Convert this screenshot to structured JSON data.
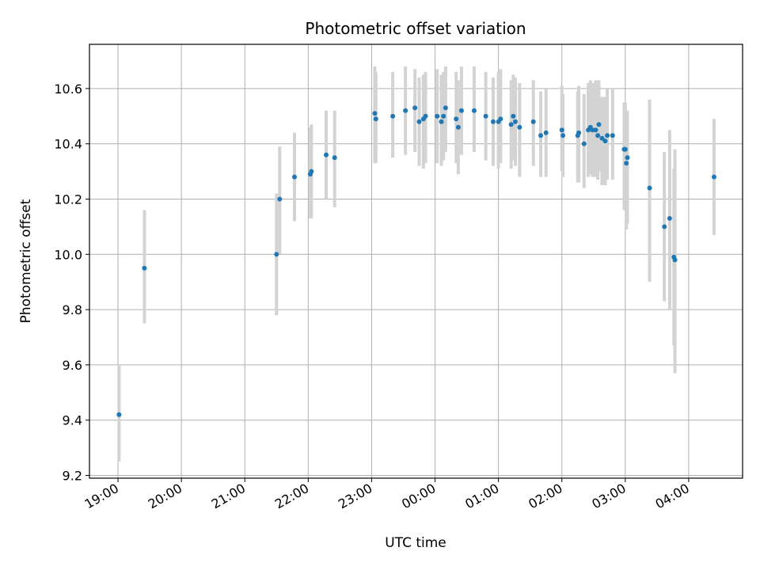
{
  "chart_data": {
    "type": "scatter",
    "title": "Photometric offset variation",
    "xlabel": "UTC time",
    "ylabel": "Photometric offset",
    "grid": true,
    "legend": "none",
    "x_tick_labels": [
      "19:00",
      "20:00",
      "21:00",
      "22:00",
      "23:00",
      "00:00",
      "01:00",
      "02:00",
      "03:00",
      "04:00"
    ],
    "y_tick_labels": [
      "9.2",
      "9.4",
      "9.6",
      "9.8",
      "10.0",
      "10.2",
      "10.4",
      "10.6"
    ],
    "ylim": [
      9.19,
      10.76
    ],
    "xlim_hours": [
      18.55,
      28.85
    ],
    "colors": {
      "point": "#1f77b4",
      "errorbar": "#d3d3d3",
      "grid": "#b0b0b0"
    },
    "series": [
      {
        "x": [
          "19:01",
          "19:25",
          "21:30",
          "21:33",
          "21:47",
          "22:02",
          "22:03",
          "22:17",
          "22:25",
          "23:03",
          "23:04",
          "23:20",
          "23:32",
          "23:41",
          "23:45",
          "23:49",
          "23:51",
          "00:02",
          "00:06",
          "00:08",
          "00:10",
          "00:20",
          "00:22",
          "00:25",
          "00:37",
          "00:48",
          "00:55",
          "01:00",
          "01:02",
          "01:12",
          "01:14",
          "01:16",
          "01:20",
          "01:33",
          "01:40",
          "01:45",
          "02:00",
          "02:01",
          "02:15",
          "02:16",
          "02:21",
          "02:25",
          "02:27",
          "02:29",
          "02:32",
          "02:34",
          "02:35",
          "02:38",
          "02:41",
          "02:43",
          "02:48",
          "02:59",
          "03:00",
          "03:01",
          "03:02",
          "03:23",
          "03:37",
          "03:42",
          "03:46",
          "03:47",
          "04:24"
        ],
        "y": [
          9.42,
          9.95,
          10.0,
          10.2,
          10.28,
          10.29,
          10.3,
          10.36,
          10.35,
          10.51,
          10.49,
          10.5,
          10.52,
          10.53,
          10.48,
          10.49,
          10.5,
          10.5,
          10.48,
          10.5,
          10.53,
          10.49,
          10.46,
          10.52,
          10.52,
          10.5,
          10.48,
          10.48,
          10.49,
          10.47,
          10.5,
          10.48,
          10.46,
          10.48,
          10.43,
          10.44,
          10.45,
          10.43,
          10.43,
          10.44,
          10.4,
          10.45,
          10.46,
          10.45,
          10.45,
          10.43,
          10.47,
          10.42,
          10.41,
          10.43,
          10.43,
          10.38,
          10.38,
          10.33,
          10.35,
          10.24,
          10.1,
          10.13,
          9.99,
          9.98,
          10.28
        ],
        "err_low": [
          9.25,
          9.75,
          9.78,
          10.0,
          10.12,
          10.13,
          10.13,
          10.2,
          10.17,
          10.33,
          10.33,
          10.35,
          10.36,
          10.37,
          10.32,
          10.31,
          10.33,
          10.33,
          10.32,
          10.34,
          10.37,
          10.33,
          10.29,
          10.36,
          10.37,
          10.34,
          10.32,
          10.31,
          10.33,
          10.31,
          10.34,
          10.32,
          10.28,
          10.32,
          10.28,
          10.28,
          10.3,
          10.28,
          10.26,
          10.26,
          10.24,
          10.28,
          10.29,
          10.28,
          10.28,
          10.27,
          10.3,
          10.25,
          10.25,
          10.27,
          10.27,
          10.16,
          10.2,
          10.09,
          10.11,
          9.9,
          9.83,
          9.8,
          9.67,
          9.57,
          10.07
        ],
        "err_high": [
          9.6,
          10.16,
          10.22,
          10.39,
          10.44,
          10.46,
          10.47,
          10.52,
          10.52,
          10.68,
          10.66,
          10.66,
          10.68,
          10.67,
          10.64,
          10.65,
          10.66,
          10.67,
          10.65,
          10.66,
          10.68,
          10.66,
          10.63,
          10.68,
          10.68,
          10.66,
          10.64,
          10.66,
          10.67,
          10.63,
          10.65,
          10.64,
          10.62,
          10.63,
          10.59,
          10.6,
          10.61,
          10.58,
          10.59,
          10.61,
          10.58,
          10.62,
          10.63,
          10.62,
          10.63,
          10.6,
          10.63,
          10.57,
          10.57,
          10.6,
          10.6,
          10.55,
          10.55,
          10.5,
          10.52,
          10.56,
          10.37,
          10.45,
          10.31,
          10.38,
          10.49
        ]
      }
    ]
  }
}
